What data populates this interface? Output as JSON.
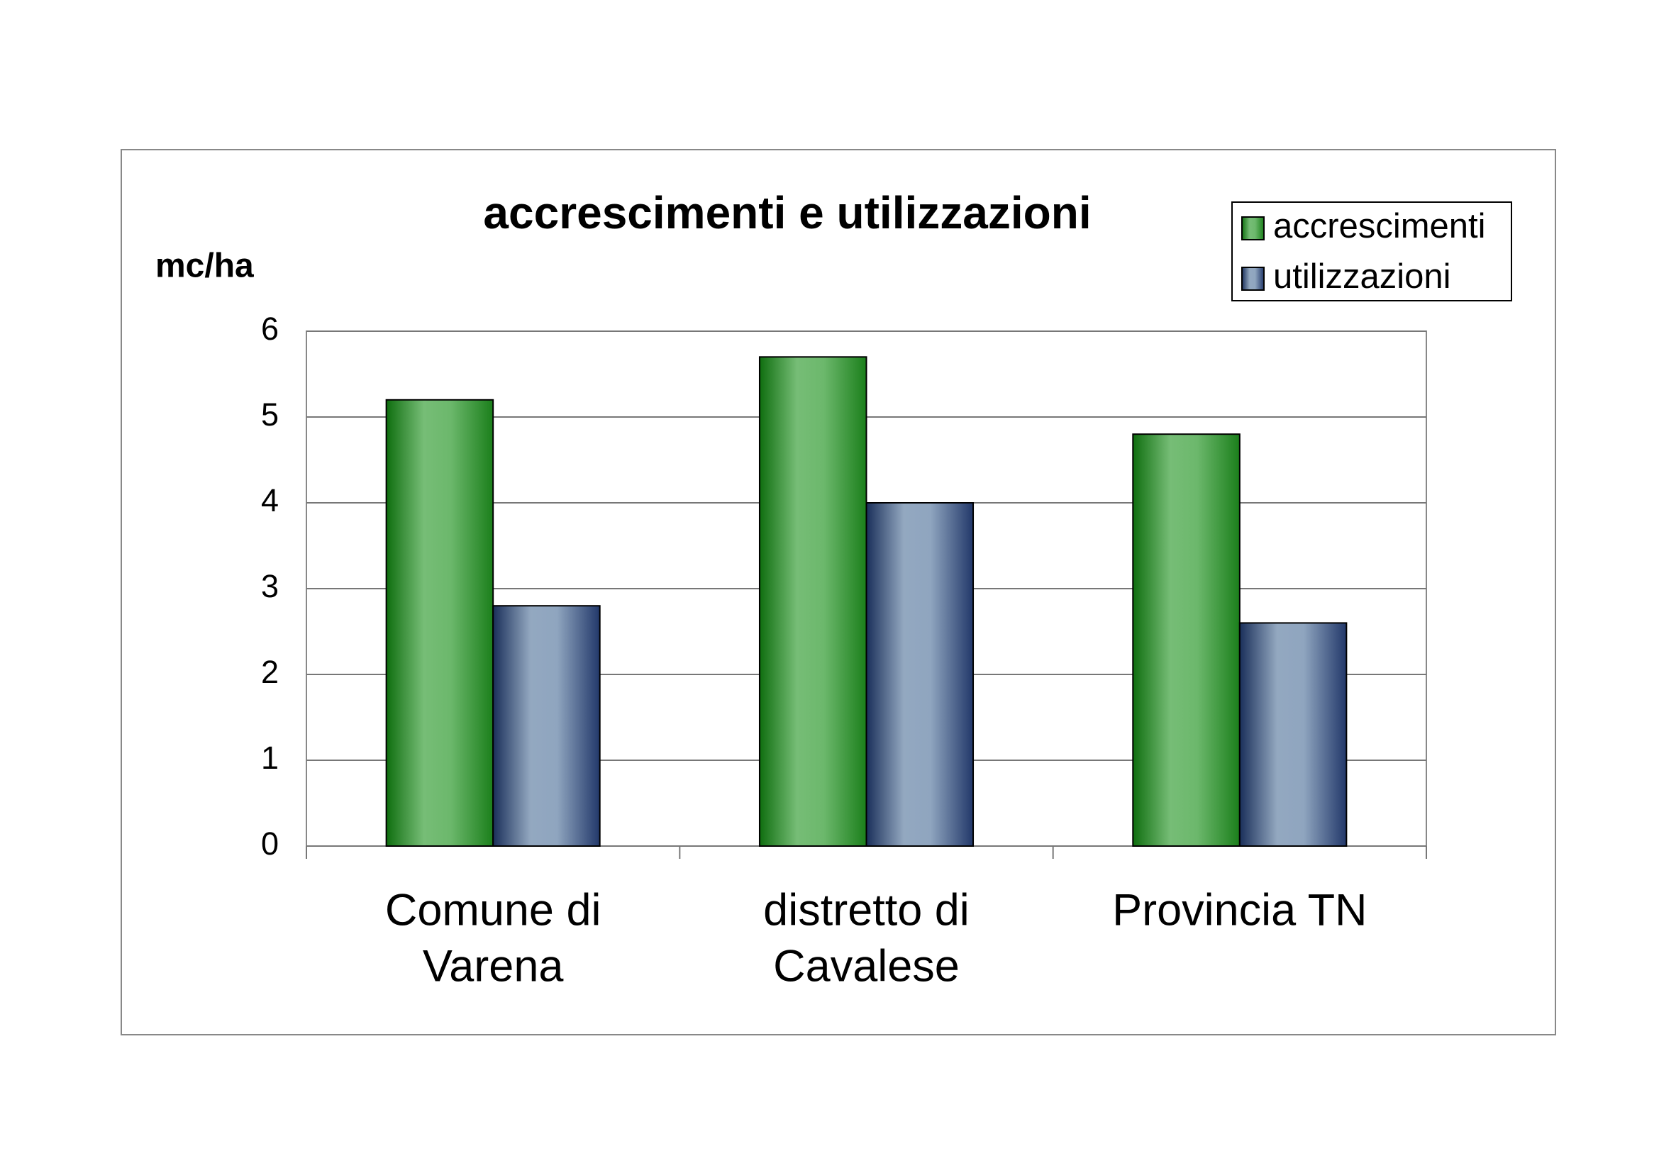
{
  "chart_data": {
    "type": "bar",
    "title": "accrescimenti e utilizzazioni",
    "y_label": "mc/ha",
    "categories": [
      [
        "Comune di",
        "Varena"
      ],
      [
        "distretto di",
        "Cavalese"
      ],
      [
        "Provincia TN"
      ]
    ],
    "series": [
      {
        "name": "accrescimenti",
        "color": "#2e8b2e",
        "values": [
          5.2,
          5.7,
          4.8
        ]
      },
      {
        "name": "utilizzazioni",
        "color": "#3b5680",
        "values": [
          2.8,
          4.0,
          2.6
        ]
      }
    ],
    "ylim": [
      0,
      6
    ],
    "yticks": [
      0,
      1,
      2,
      3,
      4,
      5,
      6
    ],
    "grid": true,
    "legend": "top-right"
  }
}
